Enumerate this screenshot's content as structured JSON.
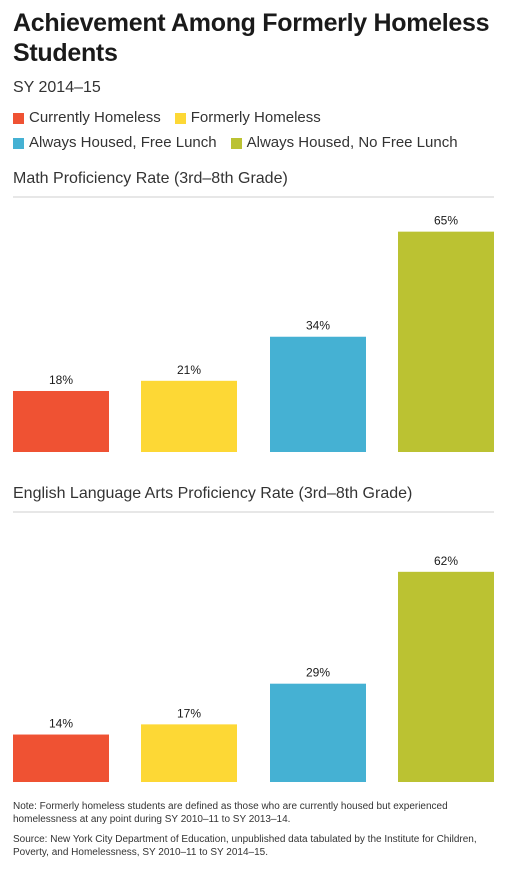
{
  "header": {
    "title": "Achievement Among Formerly Homeless Students",
    "subtitle": "SY 2014–15"
  },
  "legend": [
    {
      "label": "Currently Homeless",
      "color": "#ef5233"
    },
    {
      "label": "Formerly Homeless",
      "color": "#fdd835"
    },
    {
      "label": "Always Housed, Free Lunch",
      "color": "#45b1d3"
    },
    {
      "label": "Always Housed, No Free Lunch",
      "color": "#bbc232"
    }
  ],
  "chart_data": [
    {
      "type": "bar",
      "title": "Math Proficiency Rate (3rd–8th Grade)",
      "categories": [
        "Currently Homeless",
        "Formerly Homeless",
        "Always Housed, Free Lunch",
        "Always Housed, No Free Lunch"
      ],
      "values": [
        18,
        21,
        34,
        65
      ],
      "value_labels": [
        "18%",
        "21%",
        "34%",
        "65%"
      ],
      "colors": [
        "#ef5233",
        "#fdd835",
        "#45b1d3",
        "#bbc232"
      ],
      "ylim": [
        0,
        70
      ]
    },
    {
      "type": "bar",
      "title": "English Language Arts Proficiency Rate (3rd–8th Grade)",
      "categories": [
        "Currently Homeless",
        "Formerly Homeless",
        "Always Housed, Free Lunch",
        "Always Housed, No Free Lunch"
      ],
      "values": [
        14,
        17,
        29,
        62
      ],
      "value_labels": [
        "14%",
        "17%",
        "29%",
        "62%"
      ],
      "colors": [
        "#ef5233",
        "#fdd835",
        "#45b1d3",
        "#bbc232"
      ],
      "ylim": [
        0,
        70
      ]
    }
  ],
  "notes": {
    "note": "Note: Formerly homeless students are defined as those who are currently housed but experienced homelessness at any point during SY 2010–11 to SY 2013–14.",
    "source": "Source: New York City Department of Education, unpublished data tabulated by the Institute for Children, Poverty, and Homelessness, SY 2010–11 to SY 2014–15."
  }
}
